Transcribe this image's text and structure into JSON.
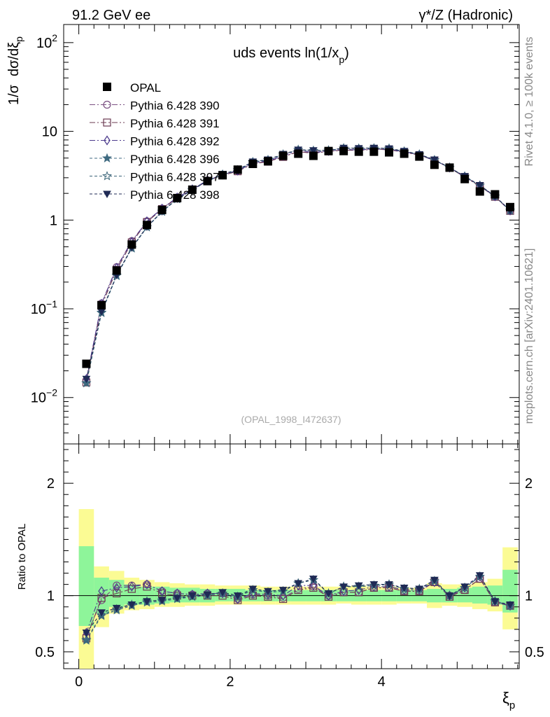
{
  "header": {
    "left": "91.2 GeV ee",
    "right": "γ*/Z (Hadronic)"
  },
  "side": {
    "rivet": "Rivet 4.1.0, ≥ 100k events",
    "mcplots": "mcplots.cern.ch [arXiv:2401.10621]"
  },
  "chart_data": [
    {
      "type": "scatter",
      "name": "main",
      "title": "uds events ln(1/x",
      "title_sub": "p",
      "title_end": ")",
      "ylabel_a": "1/σ",
      "ylabel_b": "dσ/dξ",
      "ylabel_sub": "p",
      "yscale": "log",
      "ylim": [
        0.003,
        160
      ],
      "xlim": [
        -0.2,
        5.82
      ],
      "yticks": [
        {
          "v": 0.01,
          "base": "10",
          "exp": "−2"
        },
        {
          "v": 0.1,
          "base": "10",
          "exp": "−1"
        },
        {
          "v": 1,
          "base": "1",
          "exp": ""
        },
        {
          "v": 10,
          "base": "10",
          "exp": ""
        },
        {
          "v": 100,
          "base": "10",
          "exp": "2"
        }
      ],
      "watermark": "(OPAL_1998_I472637)",
      "x": [
        0.1,
        0.3,
        0.5,
        0.7,
        0.9,
        1.1,
        1.3,
        1.5,
        1.7,
        1.9,
        2.1,
        2.3,
        2.5,
        2.7,
        2.9,
        3.1,
        3.3,
        3.5,
        3.7,
        3.9,
        4.1,
        4.3,
        4.5,
        4.7,
        4.9,
        5.1,
        5.3,
        5.5,
        5.7
      ],
      "data": {
        "name": "OPAL",
        "values": [
          0.024,
          0.11,
          0.27,
          0.53,
          0.88,
          1.3,
          1.77,
          2.2,
          2.75,
          3.2,
          3.7,
          4.3,
          4.6,
          5.3,
          5.6,
          5.3,
          6.0,
          6.0,
          5.9,
          5.9,
          5.8,
          5.6,
          5.2,
          4.2,
          3.9,
          2.9,
          2.1,
          1.95,
          1.4
        ]
      },
      "series": [
        {
          "name": "Pythia 6.428 390",
          "marker": "circle",
          "color": "#7a4f82",
          "dash": "8,3,2,3",
          "values": [
            0.0155,
            0.115,
            0.295,
            0.58,
            0.97,
            1.35,
            1.8,
            2.22,
            2.8,
            3.25,
            3.6,
            4.35,
            4.6,
            5.2,
            5.95,
            5.7,
            5.97,
            6.15,
            6.1,
            6.3,
            6.2,
            5.85,
            5.4,
            4.7,
            3.9,
            3.05,
            2.42,
            1.83,
            1.28
          ]
        },
        {
          "name": "Pythia 6.428 391",
          "marker": "square",
          "color": "#6b3a52",
          "dash": "8,3,2,3",
          "values": [
            0.0148,
            0.108,
            0.275,
            0.56,
            0.95,
            1.33,
            1.77,
            2.2,
            2.75,
            3.2,
            3.55,
            4.3,
            4.55,
            5.15,
            5.9,
            5.65,
            5.95,
            6.15,
            6.1,
            6.3,
            6.2,
            5.8,
            5.4,
            4.7,
            3.88,
            3.05,
            2.42,
            1.83,
            1.27
          ]
        },
        {
          "name": "Pythia 6.428 392",
          "marker": "diamond",
          "color": "#4b3a8c",
          "dash": "8,3,2,3",
          "values": [
            0.0162,
            0.114,
            0.29,
            0.57,
            0.97,
            1.35,
            1.8,
            2.23,
            2.8,
            3.25,
            3.6,
            4.4,
            4.65,
            5.3,
            6.1,
            5.8,
            6.0,
            6.25,
            6.2,
            6.35,
            6.25,
            5.9,
            5.45,
            4.72,
            3.9,
            3.1,
            2.45,
            1.85,
            1.28
          ]
        },
        {
          "name": "Pythia 6.428 396",
          "marker": "star",
          "color": "#3f6a80",
          "dash": "4,3",
          "values": [
            0.0145,
            0.09,
            0.235,
            0.48,
            0.83,
            1.24,
            1.72,
            2.18,
            2.75,
            3.25,
            3.65,
            4.5,
            4.75,
            5.5,
            6.2,
            6.05,
            6.1,
            6.45,
            6.4,
            6.45,
            6.4,
            5.95,
            5.5,
            4.75,
            3.9,
            3.1,
            2.45,
            1.85,
            1.28
          ]
        },
        {
          "name": "Pythia 6.428 397",
          "marker": "star-open",
          "color": "#3a6478",
          "dash": "4,3",
          "values": [
            0.0146,
            0.091,
            0.238,
            0.485,
            0.835,
            1.25,
            1.73,
            2.19,
            2.76,
            3.26,
            3.66,
            4.52,
            4.76,
            5.5,
            6.2,
            6.05,
            6.1,
            6.45,
            6.4,
            6.45,
            6.4,
            5.95,
            5.5,
            4.75,
            3.9,
            3.1,
            2.45,
            1.85,
            1.28
          ]
        },
        {
          "name": "Pythia 6.428 398",
          "marker": "triangle-down",
          "color": "#1f2a55",
          "dash": "4,3",
          "values": [
            0.0162,
            0.093,
            0.24,
            0.49,
            0.84,
            1.25,
            1.73,
            2.2,
            2.78,
            3.3,
            3.7,
            4.55,
            4.8,
            5.55,
            6.2,
            6.1,
            6.1,
            6.5,
            6.45,
            6.5,
            6.4,
            6.0,
            5.5,
            4.8,
            3.9,
            3.12,
            2.47,
            1.86,
            1.29
          ]
        }
      ]
    },
    {
      "type": "scatter",
      "name": "ratio",
      "ylabel": "Ratio to OPAL",
      "ylim": [
        0.35,
        2.35
      ],
      "xlim": [
        -0.2,
        5.82
      ],
      "xlabel": "ξ",
      "xlabel_sub": "p",
      "xticks": [
        0,
        2,
        4
      ],
      "yticks": [
        0.5,
        1,
        2
      ],
      "band_green": [
        [
          0.73,
          1.44
        ],
        [
          0.84,
          1.16
        ],
        [
          0.9,
          1.14
        ],
        [
          0.92,
          1.1
        ],
        [
          0.92,
          1.08
        ],
        [
          0.93,
          1.08
        ],
        [
          0.94,
          1.07
        ],
        [
          0.94,
          1.07
        ],
        [
          0.94,
          1.06
        ],
        [
          0.95,
          1.06
        ],
        [
          0.95,
          1.06
        ],
        [
          0.95,
          1.05
        ],
        [
          0.95,
          1.05
        ],
        [
          0.95,
          1.05
        ],
        [
          0.95,
          1.05
        ],
        [
          0.95,
          1.05
        ],
        [
          0.95,
          1.05
        ],
        [
          0.95,
          1.05
        ],
        [
          0.95,
          1.05
        ],
        [
          0.95,
          1.05
        ],
        [
          0.95,
          1.05
        ],
        [
          0.95,
          1.05
        ],
        [
          0.95,
          1.05
        ],
        [
          0.94,
          1.06
        ],
        [
          0.94,
          1.06
        ],
        [
          0.94,
          1.07
        ],
        [
          0.93,
          1.08
        ],
        [
          0.92,
          1.09
        ],
        [
          0.85,
          1.23
        ]
      ],
      "band_yellow": [
        [
          0.3,
          1.77
        ],
        [
          0.72,
          1.26
        ],
        [
          0.84,
          1.22
        ],
        [
          0.87,
          1.16
        ],
        [
          0.88,
          1.14
        ],
        [
          0.9,
          1.12
        ],
        [
          0.9,
          1.11
        ],
        [
          0.91,
          1.1
        ],
        [
          0.91,
          1.1
        ],
        [
          0.92,
          1.09
        ],
        [
          0.92,
          1.09
        ],
        [
          0.92,
          1.09
        ],
        [
          0.92,
          1.08
        ],
        [
          0.92,
          1.08
        ],
        [
          0.92,
          1.08
        ],
        [
          0.92,
          1.08
        ],
        [
          0.92,
          1.08
        ],
        [
          0.93,
          1.08
        ],
        [
          0.92,
          1.09
        ],
        [
          0.92,
          1.08
        ],
        [
          0.92,
          1.08
        ],
        [
          0.93,
          1.07
        ],
        [
          0.93,
          1.07
        ],
        [
          0.89,
          1.11
        ],
        [
          0.91,
          1.1
        ],
        [
          0.9,
          1.1
        ],
        [
          0.88,
          1.12
        ],
        [
          0.86,
          1.15
        ],
        [
          0.7,
          1.43
        ]
      ],
      "series": [
        {
          "name": "Pythia 6.428 390",
          "values": [
            0.64,
            0.96,
            1.09,
            1.09,
            1.1,
            1.04,
            1.02,
            1.01,
            1.02,
            1.02,
            0.97,
            1.01,
            1.0,
            0.98,
            1.06,
            1.08,
            1.0,
            1.03,
            1.03,
            1.07,
            1.07,
            1.04,
            1.04,
            1.12,
            1.0,
            1.05,
            1.15,
            0.94,
            0.91
          ]
        },
        {
          "name": "Pythia 6.428 391",
          "values": [
            0.62,
            0.98,
            1.02,
            1.06,
            1.08,
            1.02,
            1.0,
            1.0,
            1.0,
            1.0,
            0.96,
            1.0,
            0.99,
            0.97,
            1.05,
            1.07,
            0.99,
            1.03,
            1.03,
            1.07,
            1.07,
            1.04,
            1.04,
            1.12,
            0.99,
            1.05,
            1.15,
            0.94,
            0.91
          ]
        },
        {
          "name": "Pythia 6.428 392",
          "values": [
            0.67,
            1.04,
            1.07,
            1.08,
            1.1,
            1.04,
            1.02,
            1.01,
            1.02,
            1.02,
            0.97,
            1.02,
            1.01,
            1.0,
            1.09,
            1.09,
            1.0,
            1.04,
            1.05,
            1.08,
            1.08,
            1.05,
            1.05,
            1.12,
            1.0,
            1.07,
            1.17,
            0.95,
            0.91
          ]
        },
        {
          "name": "Pythia 6.428 396",
          "values": [
            0.6,
            0.82,
            0.87,
            0.91,
            0.94,
            0.95,
            0.97,
            0.99,
            1.0,
            1.02,
            0.99,
            1.05,
            1.03,
            1.04,
            1.11,
            1.14,
            1.02,
            1.08,
            1.08,
            1.09,
            1.1,
            1.06,
            1.06,
            1.13,
            1.0,
            1.07,
            1.17,
            0.95,
            0.91
          ]
        },
        {
          "name": "Pythia 6.428 397",
          "values": [
            0.61,
            0.83,
            0.88,
            0.92,
            0.95,
            0.96,
            0.98,
            0.99,
            1.0,
            1.02,
            0.99,
            1.05,
            1.03,
            1.04,
            1.11,
            1.14,
            1.02,
            1.08,
            1.08,
            1.09,
            1.1,
            1.06,
            1.06,
            1.13,
            1.0,
            1.07,
            1.17,
            0.95,
            0.91
          ]
        },
        {
          "name": "Pythia 6.428 398",
          "values": [
            0.67,
            0.85,
            0.89,
            0.92,
            0.95,
            0.96,
            0.98,
            1.0,
            1.01,
            1.03,
            1.0,
            1.06,
            1.04,
            1.05,
            1.11,
            1.15,
            1.02,
            1.08,
            1.09,
            1.1,
            1.1,
            1.07,
            1.06,
            1.14,
            1.0,
            1.08,
            1.18,
            0.95,
            0.92
          ]
        }
      ]
    }
  ]
}
